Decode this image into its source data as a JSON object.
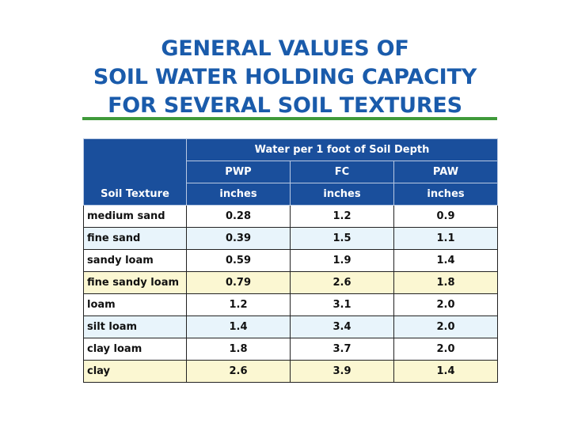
{
  "title": {
    "line1": "GENERAL VALUES OF",
    "line2": "SOIL WATER HOLDING CAPACITY",
    "line3": "FOR SEVERAL SOIL TEXTURES"
  },
  "colors": {
    "title": "#1a5bab",
    "rule": "#3f9a3a",
    "header_bg": "#1a4f9c",
    "row_blue": "#e8f4fb",
    "row_yellow": "#fbf7d2"
  },
  "table": {
    "group_header": "Water per 1 foot of Soil Depth",
    "texture_header": "Soil Texture",
    "columns": [
      "PWP",
      "FC",
      "PAW"
    ],
    "units": [
      "inches",
      "inches",
      "inches"
    ],
    "rows": [
      {
        "texture": "medium sand",
        "pwp": "0.28",
        "fc": "1.2",
        "paw": "0.9",
        "shade": "white"
      },
      {
        "texture": "fine sand",
        "pwp": "0.39",
        "fc": "1.5",
        "paw": "1.1",
        "shade": "blue"
      },
      {
        "texture": "sandy loam",
        "pwp": "0.59",
        "fc": "1.9",
        "paw": "1.4",
        "shade": "white"
      },
      {
        "texture": "fine sandy loam",
        "pwp": "0.79",
        "fc": "2.6",
        "paw": "1.8",
        "shade": "yellow"
      },
      {
        "texture": "loam",
        "pwp": "1.2",
        "fc": "3.1",
        "paw": "2.0",
        "shade": "white"
      },
      {
        "texture": "silt loam",
        "pwp": "1.4",
        "fc": "3.4",
        "paw": "2.0",
        "shade": "blue"
      },
      {
        "texture": "clay loam",
        "pwp": "1.8",
        "fc": "3.7",
        "paw": "2.0",
        "shade": "white"
      },
      {
        "texture": "clay",
        "pwp": "2.6",
        "fc": "3.9",
        "paw": "1.4",
        "shade": "yellow"
      }
    ]
  }
}
